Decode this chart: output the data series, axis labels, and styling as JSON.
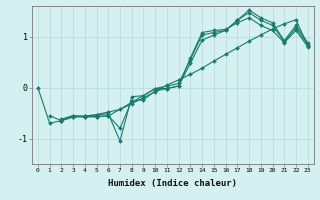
{
  "xlabel": "Humidex (Indice chaleur)",
  "background_color": "#d5f0f0",
  "grid_color": "#b8dada",
  "line_color": "#1a7a6e",
  "xlim": [
    -0.5,
    23.5
  ],
  "ylim": [
    -1.5,
    1.6
  ],
  "yticks": [
    -1,
    0,
    1
  ],
  "xticks": [
    0,
    1,
    2,
    3,
    4,
    5,
    6,
    7,
    8,
    9,
    10,
    11,
    12,
    13,
    14,
    15,
    16,
    17,
    18,
    19,
    20,
    21,
    22,
    23
  ],
  "series": [
    [
      0,
      -0.7,
      -0.65,
      -0.58,
      -0.56,
      -0.53,
      -0.48,
      -0.43,
      -0.32,
      -0.2,
      -0.08,
      0.05,
      0.15,
      0.26,
      0.38,
      0.52,
      0.65,
      0.78,
      0.91,
      1.03,
      1.15,
      1.25,
      1.33,
      0.82
    ],
    [
      null,
      -0.55,
      -0.65,
      -0.56,
      -0.56,
      -0.54,
      -0.51,
      -1.05,
      -0.18,
      -0.16,
      -0.02,
      0.03,
      0.08,
      0.55,
      1.03,
      1.08,
      1.12,
      1.32,
      1.52,
      1.37,
      1.27,
      0.92,
      1.22,
      0.88
    ],
    [
      null,
      null,
      -0.65,
      -0.57,
      -0.58,
      -0.57,
      -0.56,
      null,
      null,
      null,
      -0.02,
      -0.02,
      0.03,
      0.58,
      1.08,
      1.12,
      1.14,
      1.27,
      1.37,
      1.22,
      1.12,
      0.88,
      1.12,
      0.8
    ],
    [
      null,
      null,
      -0.62,
      -0.55,
      -0.57,
      -0.57,
      -0.55,
      -0.8,
      -0.26,
      -0.24,
      -0.07,
      -0.02,
      0.03,
      0.48,
      0.93,
      1.03,
      1.12,
      1.32,
      1.47,
      1.32,
      1.22,
      0.9,
      1.17,
      0.84
    ]
  ]
}
